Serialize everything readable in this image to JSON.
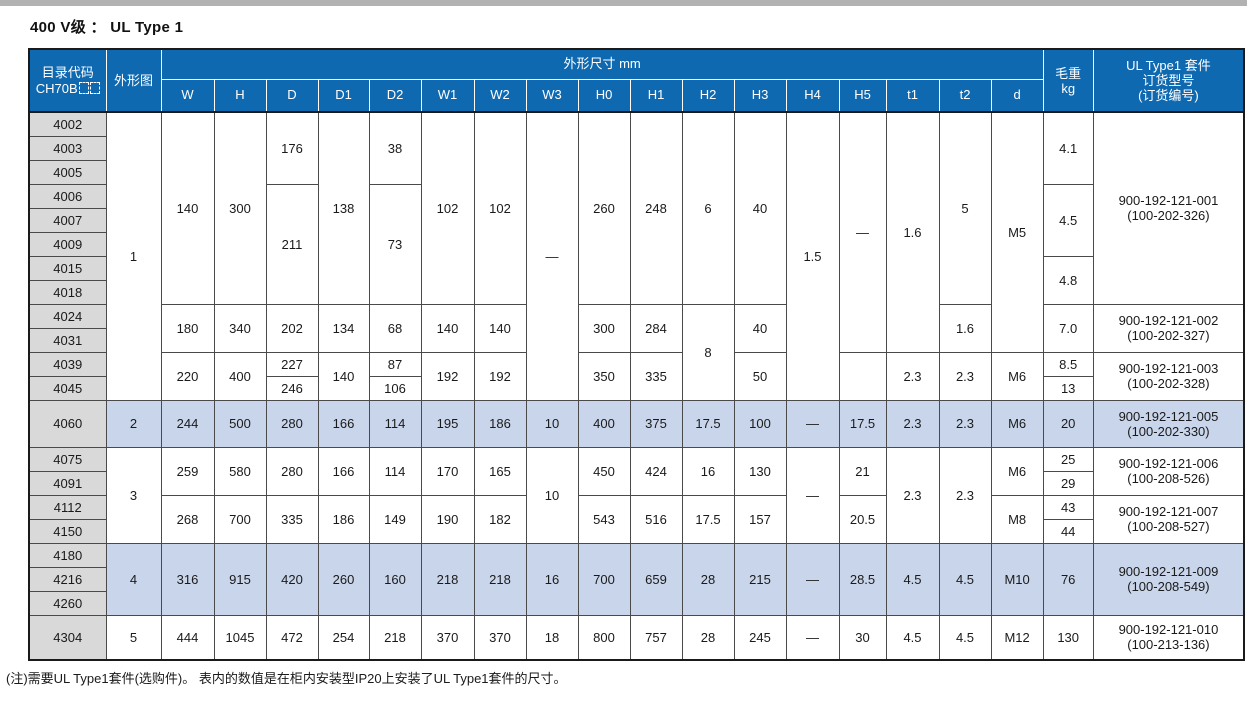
{
  "page_title": "400 V级 ：  UL Type 1",
  "colors": {
    "header_blue": "#0f69b1",
    "highlight_row": "#c9d5ea",
    "code_column_gray": "#d9d9d9"
  },
  "table": {
    "header": {
      "catalog_line1": "目录代码",
      "catalog_line2": "CH70B",
      "outline": "外形图",
      "dims_group": "外形尺寸 mm",
      "dim_cols": [
        "W",
        "H",
        "D",
        "D1",
        "D2",
        "W1",
        "W2",
        "W3",
        "H0",
        "H1",
        "H2",
        "H3",
        "H4",
        "H5",
        "t1",
        "t2",
        "d"
      ],
      "weight": "毛重\nkg",
      "order": "UL Type1 套件\n订货型号\n(订货编号)"
    },
    "rows": [
      {
        "code": "4002",
        "cells": [
          {
            "v": "1",
            "rs": 12
          },
          {
            "v": "140",
            "rs": 8
          },
          {
            "v": "300",
            "rs": 8
          },
          {
            "v": "176",
            "rs": 3
          },
          {
            "v": "138",
            "rs": 8
          },
          {
            "v": "38",
            "rs": 3
          },
          {
            "v": "102",
            "rs": 8
          },
          {
            "v": "102",
            "rs": 8
          },
          {
            "v": "—",
            "rs": 12
          },
          {
            "v": "260",
            "rs": 8
          },
          {
            "v": "248",
            "rs": 8
          },
          {
            "v": "6",
            "rs": 8
          },
          {
            "v": "40",
            "rs": 8
          },
          {
            "v": "1.5",
            "rs": 12
          },
          {
            "v": "—",
            "rs": 10
          },
          {
            "v": "1.6",
            "rs": 10
          },
          {
            "v": "5",
            "rs": 8
          },
          {
            "v": "M5",
            "rs": 10
          },
          {
            "v": "4.1",
            "rs": 3
          },
          {
            "v": "900-192-121-001\n(100-202-326)",
            "rs": 8
          }
        ]
      },
      {
        "code": "4003",
        "cells": []
      },
      {
        "code": "4005",
        "cells": []
      },
      {
        "code": "4006",
        "cells": [
          {
            "v": "211",
            "rs": 5
          },
          {
            "v": "73",
            "rs": 5
          },
          {
            "v": "4.5",
            "rs": 3
          }
        ]
      },
      {
        "code": "4007",
        "cells": []
      },
      {
        "code": "4009",
        "cells": []
      },
      {
        "code": "4015",
        "cells": [
          {
            "v": "4.8",
            "rs": 2
          }
        ]
      },
      {
        "code": "4018",
        "cells": []
      },
      {
        "code": "4024",
        "cells": [
          {
            "v": "180",
            "rs": 2
          },
          {
            "v": "340",
            "rs": 2
          },
          {
            "v": "202",
            "rs": 2
          },
          {
            "v": "134",
            "rs": 2
          },
          {
            "v": "68",
            "rs": 2
          },
          {
            "v": "140",
            "rs": 2
          },
          {
            "v": "140",
            "rs": 2
          },
          {
            "v": "300",
            "rs": 2
          },
          {
            "v": "284",
            "rs": 2
          },
          {
            "v": "8",
            "rs": 4
          },
          {
            "v": "40",
            "rs": 2
          },
          {
            "v": "1.6",
            "rs": 2
          },
          {
            "v": "7.0",
            "rs": 2
          },
          {
            "v": "900-192-121-002\n(100-202-327)",
            "rs": 2
          }
        ]
      },
      {
        "code": "4031",
        "cells": []
      },
      {
        "code": "4039",
        "cells": [
          {
            "v": "220",
            "rs": 2
          },
          {
            "v": "400",
            "rs": 2
          },
          {
            "v": "227"
          },
          {
            "v": "140",
            "rs": 2
          },
          {
            "v": "87"
          },
          {
            "v": "192",
            "rs": 2
          },
          {
            "v": "192",
            "rs": 2
          },
          {
            "v": "350",
            "rs": 2
          },
          {
            "v": "335",
            "rs": 2
          },
          {
            "v": "50",
            "rs": 2
          },
          {
            "v": "",
            "rs": 2
          },
          {
            "v": "2.3",
            "rs": 2
          },
          {
            "v": "2.3",
            "rs": 2
          },
          {
            "v": "M6",
            "rs": 2
          },
          {
            "v": "8.5"
          },
          {
            "v": "900-192-121-003\n(100-202-328)",
            "rs": 2
          }
        ]
      },
      {
        "code": "4045",
        "cells": [
          {
            "v": "246"
          },
          {
            "v": "106"
          },
          {
            "v": "13"
          }
        ]
      },
      {
        "code": "4060",
        "highlight": true,
        "h": 47,
        "cells": [
          {
            "v": "2"
          },
          {
            "v": "244"
          },
          {
            "v": "500"
          },
          {
            "v": "280"
          },
          {
            "v": "166"
          },
          {
            "v": "114"
          },
          {
            "v": "195"
          },
          {
            "v": "186"
          },
          {
            "v": "10"
          },
          {
            "v": "400"
          },
          {
            "v": "375"
          },
          {
            "v": "17.5"
          },
          {
            "v": "100"
          },
          {
            "v": "—"
          },
          {
            "v": "17.5"
          },
          {
            "v": "2.3"
          },
          {
            "v": "2.3"
          },
          {
            "v": "M6"
          },
          {
            "v": "20"
          },
          {
            "v": "900-192-121-005\n(100-202-330)"
          }
        ]
      },
      {
        "code": "4075",
        "cells": [
          {
            "v": "3",
            "rs": 4
          },
          {
            "v": "259",
            "rs": 2
          },
          {
            "v": "580",
            "rs": 2
          },
          {
            "v": "280",
            "rs": 2
          },
          {
            "v": "166",
            "rs": 2
          },
          {
            "v": "114",
            "rs": 2
          },
          {
            "v": "170",
            "rs": 2
          },
          {
            "v": "165",
            "rs": 2
          },
          {
            "v": "10",
            "rs": 4
          },
          {
            "v": "450",
            "rs": 2
          },
          {
            "v": "424",
            "rs": 2
          },
          {
            "v": "16",
            "rs": 2
          },
          {
            "v": "130",
            "rs": 2
          },
          {
            "v": "—",
            "rs": 4
          },
          {
            "v": "21",
            "rs": 2
          },
          {
            "v": "2.3",
            "rs": 4
          },
          {
            "v": "2.3",
            "rs": 4
          },
          {
            "v": "M6",
            "rs": 2
          },
          {
            "v": "25"
          },
          {
            "v": "900-192-121-006\n(100-208-526)",
            "rs": 2
          }
        ]
      },
      {
        "code": "4091",
        "cells": [
          {
            "v": "29"
          }
        ]
      },
      {
        "code": "4112",
        "cells": [
          {
            "v": "268",
            "rs": 2
          },
          {
            "v": "700",
            "rs": 2
          },
          {
            "v": "335",
            "rs": 2
          },
          {
            "v": "186",
            "rs": 2
          },
          {
            "v": "149",
            "rs": 2
          },
          {
            "v": "190",
            "rs": 2
          },
          {
            "v": "182",
            "rs": 2
          },
          {
            "v": "543",
            "rs": 2
          },
          {
            "v": "516",
            "rs": 2
          },
          {
            "v": "17.5",
            "rs": 2
          },
          {
            "v": "157",
            "rs": 2
          },
          {
            "v": "20.5",
            "rs": 2
          },
          {
            "v": "M8",
            "rs": 2
          },
          {
            "v": "43"
          },
          {
            "v": "900-192-121-007\n(100-208-527)",
            "rs": 2
          }
        ]
      },
      {
        "code": "4150",
        "cells": [
          {
            "v": "44"
          }
        ]
      },
      {
        "code": "4180",
        "highlight": true,
        "cells": [
          {
            "v": "4",
            "rs": 3
          },
          {
            "v": "316",
            "rs": 3
          },
          {
            "v": "915",
            "rs": 3
          },
          {
            "v": "420",
            "rs": 3
          },
          {
            "v": "260",
            "rs": 3
          },
          {
            "v": "160",
            "rs": 3
          },
          {
            "v": "218",
            "rs": 3
          },
          {
            "v": "218",
            "rs": 3
          },
          {
            "v": "16",
            "rs": 3
          },
          {
            "v": "700",
            "rs": 3
          },
          {
            "v": "659",
            "rs": 3
          },
          {
            "v": "28",
            "rs": 3
          },
          {
            "v": "215",
            "rs": 3
          },
          {
            "v": "—",
            "rs": 3
          },
          {
            "v": "28.5",
            "rs": 3
          },
          {
            "v": "4.5",
            "rs": 3
          },
          {
            "v": "4.5",
            "rs": 3
          },
          {
            "v": "M10",
            "rs": 3
          },
          {
            "v": "76",
            "rs": 3
          },
          {
            "v": "900-192-121-009\n(100-208-549)",
            "rs": 3
          }
        ]
      },
      {
        "code": "4216",
        "highlight": true,
        "cells": []
      },
      {
        "code": "4260",
        "highlight": true,
        "cells": []
      },
      {
        "code": "4304",
        "h": 45,
        "cells": [
          {
            "v": "5"
          },
          {
            "v": "444"
          },
          {
            "v": "1045"
          },
          {
            "v": "472"
          },
          {
            "v": "254"
          },
          {
            "v": "218"
          },
          {
            "v": "370"
          },
          {
            "v": "370"
          },
          {
            "v": "18"
          },
          {
            "v": "800"
          },
          {
            "v": "757"
          },
          {
            "v": "28"
          },
          {
            "v": "245"
          },
          {
            "v": "—"
          },
          {
            "v": "30"
          },
          {
            "v": "4.5"
          },
          {
            "v": "4.5"
          },
          {
            "v": "M12"
          },
          {
            "v": "130"
          },
          {
            "v": "900-192-121-010\n(100-213-136)"
          }
        ]
      }
    ]
  },
  "footnote": "(注)需要UL Type1套件(选购件)。 表内的数值是在柜内安装型IP20上安装了UL Type1套件的尺寸。"
}
